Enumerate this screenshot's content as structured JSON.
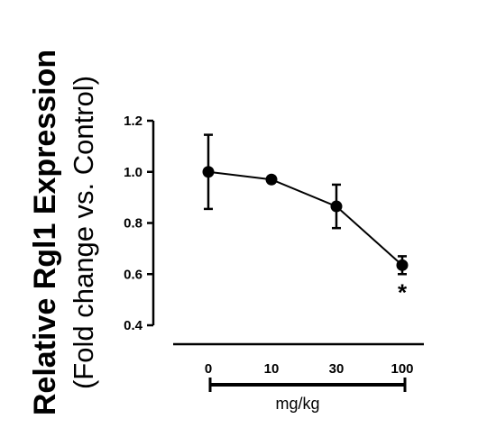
{
  "chart_data": {
    "type": "line",
    "ylabel": "Relative Rgl1 Expression",
    "ylabel_sub": "(Fold change vs. Control)",
    "categories": [
      "0",
      "10",
      "30",
      "100"
    ],
    "x_unit_label": "mg/kg",
    "ylim": [
      0.4,
      1.2
    ],
    "yticks": [
      "0.4",
      "0.6",
      "0.8",
      "1.0",
      "1.2"
    ],
    "series": [
      {
        "values": [
          1.0,
          0.97,
          0.865,
          0.635
        ],
        "error": [
          0.145,
          0.0,
          0.085,
          0.035
        ],
        "color": "#000000"
      }
    ],
    "annotations": [
      {
        "category": "100",
        "text": "*"
      }
    ]
  }
}
